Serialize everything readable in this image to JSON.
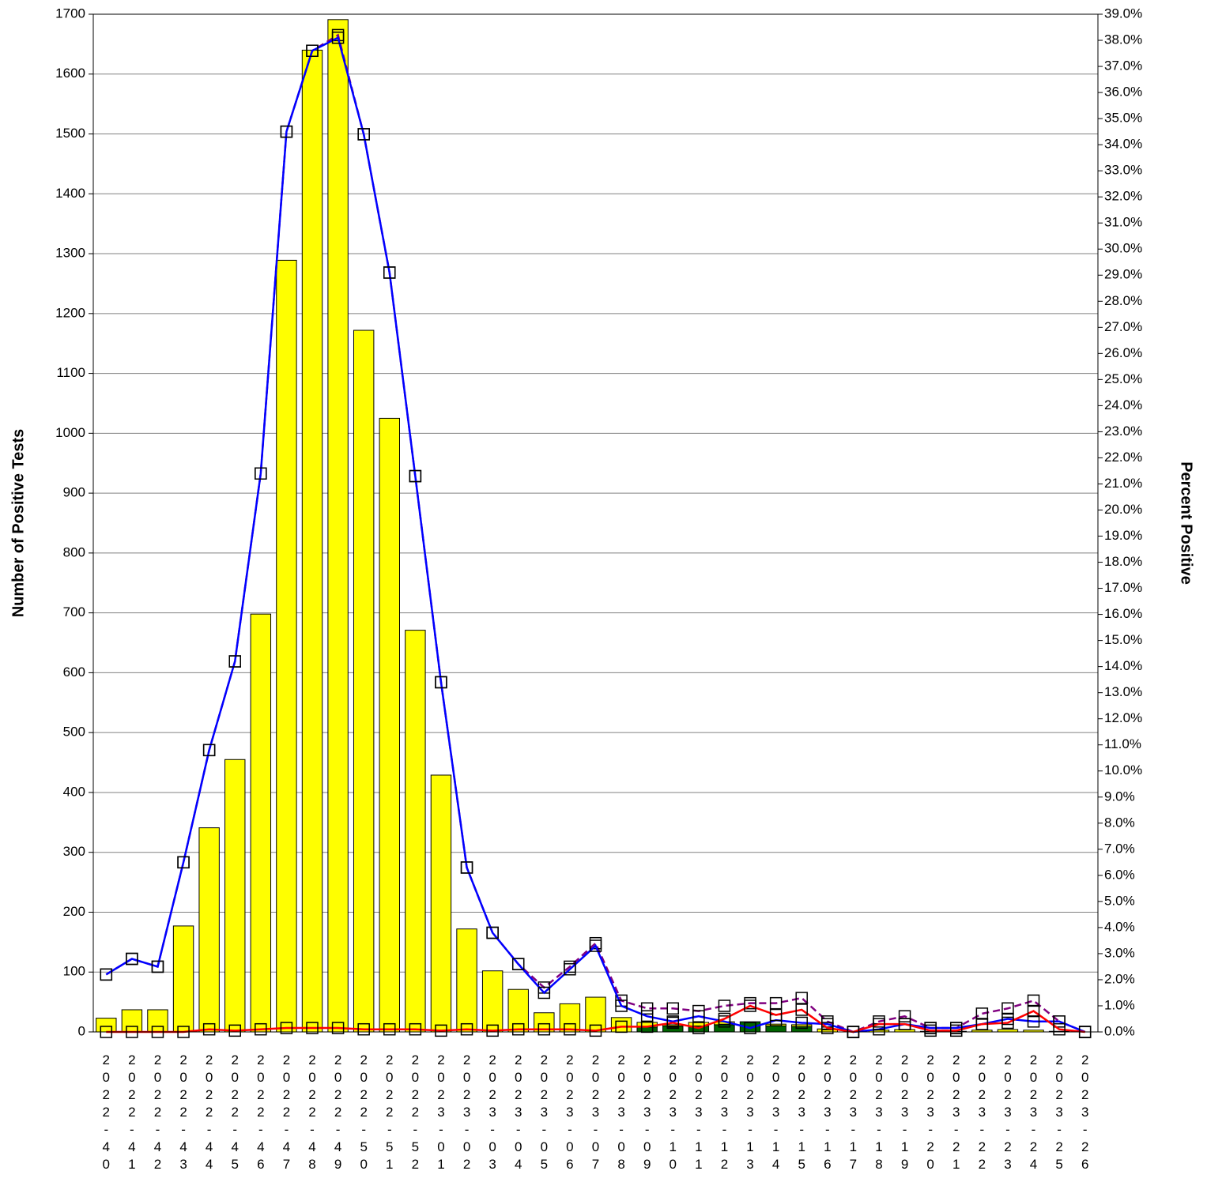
{
  "chart_data": {
    "type": "bar",
    "ylabel": "Number of Positive Tests",
    "y2label": "Percent Positive",
    "categories": [
      "2022-40",
      "2022-41",
      "2022-42",
      "2022-43",
      "2022-44",
      "2022-45",
      "2022-46",
      "2022-47",
      "2022-48",
      "2022-49",
      "2022-50",
      "2022-51",
      "2022-52",
      "2023-01",
      "2023-02",
      "2023-03",
      "2023-04",
      "2023-05",
      "2023-06",
      "2023-07",
      "2023-08",
      "2023-09",
      "2023-10",
      "2023-11",
      "2023-12",
      "2023-13",
      "2023-14",
      "2023-15",
      "2023-16",
      "2023-17",
      "2023-18",
      "2023-19",
      "2023-20",
      "2023-21",
      "2023-22",
      "2023-23",
      "2023-24",
      "2023-25",
      "2023-26"
    ],
    "series": [
      {
        "type": "bar",
        "color": "#006400",
        "values": [
          0,
          0,
          0,
          0,
          0,
          0,
          0,
          0,
          0,
          0,
          0,
          0,
          0,
          0,
          0,
          0,
          0,
          0,
          0,
          0,
          0,
          8,
          10,
          10,
          12,
          17,
          10,
          9,
          0,
          0,
          0,
          0,
          0,
          0,
          0,
          0,
          0,
          0,
          0
        ]
      },
      {
        "type": "bar",
        "color": "#ffff00",
        "values": [
          23,
          37,
          37,
          177,
          341,
          455,
          698,
          1289,
          1640,
          1691,
          1172,
          1025,
          671,
          429,
          172,
          102,
          71,
          32,
          47,
          58,
          24,
          8,
          2,
          6,
          5,
          0,
          3,
          3,
          5,
          0,
          3,
          4,
          1,
          1,
          3,
          4,
          3,
          1,
          0
        ]
      },
      {
        "type": "line",
        "axis": "y2",
        "color": "#800080",
        "dashed": true,
        "values": [
          2.2,
          2.8,
          2.5,
          6.5,
          10.8,
          14.2,
          21.4,
          34.5,
          37.6,
          38.2,
          34.4,
          29.1,
          21.3,
          13.4,
          6.3,
          3.8,
          2.6,
          1.7,
          2.5,
          3.4,
          1.2,
          0.9,
          0.9,
          0.8,
          1.0,
          1.1,
          1.1,
          1.3,
          0.4,
          0,
          0.4,
          0.6,
          0.15,
          0.15,
          0.7,
          0.9,
          1.2,
          0.4,
          0
        ]
      },
      {
        "type": "line",
        "axis": "y2",
        "color": "#0000ff",
        "values": [
          2.2,
          2.8,
          2.5,
          6.5,
          10.8,
          14.2,
          21.4,
          34.5,
          37.6,
          38.1,
          34.4,
          29.1,
          21.3,
          13.4,
          6.3,
          3.8,
          2.6,
          1.5,
          2.4,
          3.3,
          1.0,
          0.6,
          0.4,
          0.6,
          0.4,
          0.15,
          0.45,
          0.35,
          0.3,
          0,
          0.1,
          0.3,
          0.15,
          0.15,
          0.3,
          0.5,
          0.4,
          0.4,
          0
        ]
      },
      {
        "type": "line",
        "axis": "y2",
        "color": "#ff0000",
        "values": [
          0,
          0,
          0,
          0,
          0.1,
          0.05,
          0.1,
          0.15,
          0.15,
          0.15,
          0.1,
          0.1,
          0.1,
          0.05,
          0.1,
          0.05,
          0.1,
          0.1,
          0.1,
          0.05,
          0.2,
          0.2,
          0.35,
          0.15,
          0.5,
          1.0,
          0.65,
          0.85,
          0.15,
          0,
          0.3,
          0.3,
          0.05,
          0.05,
          0.3,
          0.35,
          0.8,
          0.1,
          0
        ]
      }
    ],
    "ylim": [
      0,
      1700
    ],
    "yticks": [
      0,
      100,
      200,
      300,
      400,
      500,
      600,
      700,
      800,
      900,
      1000,
      1100,
      1200,
      1300,
      1400,
      1500,
      1600,
      1700
    ],
    "y2lim": [
      0,
      39
    ],
    "y2ticks": [
      {
        "value": 0,
        "label": "0.0%"
      },
      {
        "value": 1,
        "label": "1.0%"
      },
      {
        "value": 2,
        "label": "2.0%"
      },
      {
        "value": 3,
        "label": "3.0%"
      },
      {
        "value": 4,
        "label": "4.0%"
      },
      {
        "value": 5,
        "label": "5.0%"
      },
      {
        "value": 6,
        "label": "6.0%"
      },
      {
        "value": 7,
        "label": "7.0%"
      },
      {
        "value": 8,
        "label": "8.0%"
      },
      {
        "value": 9,
        "label": "9.0%"
      },
      {
        "value": 10,
        "label": "10.0%"
      },
      {
        "value": 11,
        "label": "11.0%"
      },
      {
        "value": 12,
        "label": "12.0%"
      },
      {
        "value": 13,
        "label": "13.0%"
      },
      {
        "value": 14,
        "label": "14.0%"
      },
      {
        "value": 15,
        "label": "15.0%"
      },
      {
        "value": 16,
        "label": "16.0%"
      },
      {
        "value": 17,
        "label": "17.0%"
      },
      {
        "value": 18,
        "label": "18.0%"
      },
      {
        "value": 19,
        "label": "19.0%"
      },
      {
        "value": 20,
        "label": "20.0%"
      },
      {
        "value": 21,
        "label": "21.0%"
      },
      {
        "value": 22,
        "label": "22.0%"
      },
      {
        "value": 23,
        "label": "23.0%"
      },
      {
        "value": 24,
        "label": "24.0%"
      },
      {
        "value": 25,
        "label": "25.0%"
      },
      {
        "value": 26,
        "label": "26.0%"
      },
      {
        "value": 27,
        "label": "27.0%"
      },
      {
        "value": 28,
        "label": "28.0%"
      },
      {
        "value": 29,
        "label": "29.0%"
      },
      {
        "value": 30,
        "label": "30.0%"
      },
      {
        "value": 31,
        "label": "31.0%"
      },
      {
        "value": 32,
        "label": "32.0%"
      },
      {
        "value": 33,
        "label": "33.0%"
      },
      {
        "value": 34,
        "label": "34.0%"
      },
      {
        "value": 35,
        "label": "35.0%"
      },
      {
        "value": 36,
        "label": "36.0%"
      },
      {
        "value": 37,
        "label": "37.0%"
      },
      {
        "value": 38,
        "label": "38.0%"
      },
      {
        "value": 39,
        "label": "39.0%"
      }
    ],
    "grid": true
  }
}
